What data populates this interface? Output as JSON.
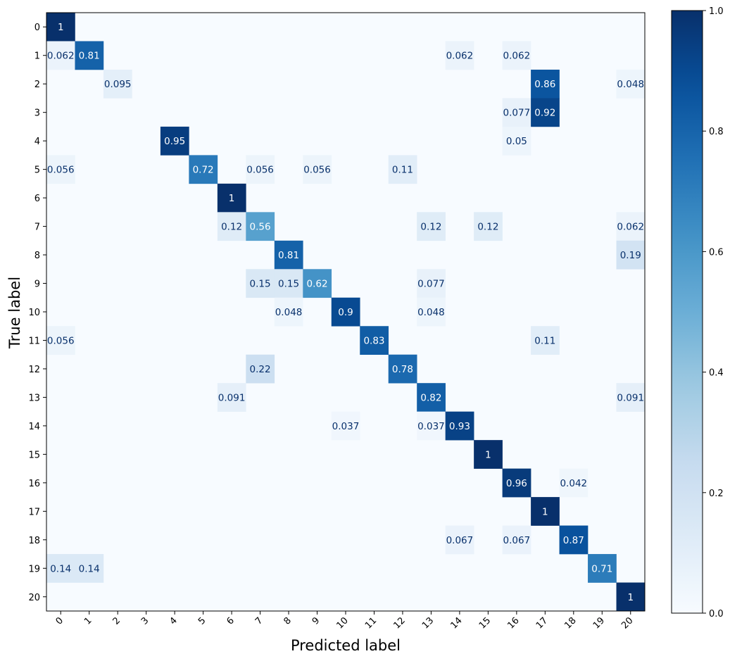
{
  "chart_data": {
    "type": "heatmap",
    "title": "",
    "xlabel": "Predicted label",
    "ylabel": "True label",
    "x_categories": [
      "0",
      "1",
      "2",
      "3",
      "4",
      "5",
      "6",
      "7",
      "8",
      "9",
      "10",
      "11",
      "12",
      "13",
      "14",
      "15",
      "16",
      "17",
      "18",
      "19",
      "20"
    ],
    "y_categories": [
      "0",
      "1",
      "2",
      "3",
      "4",
      "5",
      "6",
      "7",
      "8",
      "9",
      "10",
      "11",
      "12",
      "13",
      "14",
      "15",
      "16",
      "17",
      "18",
      "19",
      "20"
    ],
    "cells": [
      {
        "row": 0,
        "col": 0,
        "value": 1,
        "label": "1"
      },
      {
        "row": 1,
        "col": 0,
        "value": 0.062,
        "label": "0.062"
      },
      {
        "row": 1,
        "col": 1,
        "value": 0.81,
        "label": "0.81"
      },
      {
        "row": 1,
        "col": 14,
        "value": 0.062,
        "label": "0.062"
      },
      {
        "row": 1,
        "col": 16,
        "value": 0.062,
        "label": "0.062"
      },
      {
        "row": 2,
        "col": 2,
        "value": 0.095,
        "label": "0.095"
      },
      {
        "row": 2,
        "col": 17,
        "value": 0.86,
        "label": "0.86"
      },
      {
        "row": 2,
        "col": 20,
        "value": 0.048,
        "label": "0.048"
      },
      {
        "row": 3,
        "col": 16,
        "value": 0.077,
        "label": "0.077"
      },
      {
        "row": 3,
        "col": 17,
        "value": 0.92,
        "label": "0.92"
      },
      {
        "row": 4,
        "col": 4,
        "value": 0.95,
        "label": "0.95"
      },
      {
        "row": 4,
        "col": 16,
        "value": 0.05,
        "label": "0.05"
      },
      {
        "row": 5,
        "col": 0,
        "value": 0.056,
        "label": "0.056"
      },
      {
        "row": 5,
        "col": 5,
        "value": 0.72,
        "label": "0.72"
      },
      {
        "row": 5,
        "col": 7,
        "value": 0.056,
        "label": "0.056"
      },
      {
        "row": 5,
        "col": 9,
        "value": 0.056,
        "label": "0.056"
      },
      {
        "row": 5,
        "col": 12,
        "value": 0.11,
        "label": "0.11"
      },
      {
        "row": 6,
        "col": 6,
        "value": 1,
        "label": "1"
      },
      {
        "row": 7,
        "col": 6,
        "value": 0.12,
        "label": "0.12"
      },
      {
        "row": 7,
        "col": 7,
        "value": 0.56,
        "label": "0.56"
      },
      {
        "row": 7,
        "col": 13,
        "value": 0.12,
        "label": "0.12"
      },
      {
        "row": 7,
        "col": 15,
        "value": 0.12,
        "label": "0.12"
      },
      {
        "row": 7,
        "col": 20,
        "value": 0.062,
        "label": "0.062"
      },
      {
        "row": 8,
        "col": 8,
        "value": 0.81,
        "label": "0.81"
      },
      {
        "row": 8,
        "col": 20,
        "value": 0.19,
        "label": "0.19"
      },
      {
        "row": 9,
        "col": 7,
        "value": 0.15,
        "label": "0.15"
      },
      {
        "row": 9,
        "col": 8,
        "value": 0.15,
        "label": "0.15"
      },
      {
        "row": 9,
        "col": 9,
        "value": 0.62,
        "label": "0.62"
      },
      {
        "row": 9,
        "col": 13,
        "value": 0.077,
        "label": "0.077"
      },
      {
        "row": 10,
        "col": 8,
        "value": 0.048,
        "label": "0.048"
      },
      {
        "row": 10,
        "col": 10,
        "value": 0.9,
        "label": "0.9"
      },
      {
        "row": 10,
        "col": 13,
        "value": 0.048,
        "label": "0.048"
      },
      {
        "row": 11,
        "col": 0,
        "value": 0.056,
        "label": "0.056"
      },
      {
        "row": 11,
        "col": 11,
        "value": 0.83,
        "label": "0.83"
      },
      {
        "row": 11,
        "col": 17,
        "value": 0.11,
        "label": "0.11"
      },
      {
        "row": 12,
        "col": 7,
        "value": 0.22,
        "label": "0.22"
      },
      {
        "row": 12,
        "col": 12,
        "value": 0.78,
        "label": "0.78"
      },
      {
        "row": 13,
        "col": 6,
        "value": 0.091,
        "label": "0.091"
      },
      {
        "row": 13,
        "col": 13,
        "value": 0.82,
        "label": "0.82"
      },
      {
        "row": 13,
        "col": 20,
        "value": 0.091,
        "label": "0.091"
      },
      {
        "row": 14,
        "col": 10,
        "value": 0.037,
        "label": "0.037"
      },
      {
        "row": 14,
        "col": 13,
        "value": 0.037,
        "label": "0.037"
      },
      {
        "row": 14,
        "col": 14,
        "value": 0.93,
        "label": "0.93"
      },
      {
        "row": 15,
        "col": 15,
        "value": 1,
        "label": "1"
      },
      {
        "row": 16,
        "col": 16,
        "value": 0.96,
        "label": "0.96"
      },
      {
        "row": 16,
        "col": 18,
        "value": 0.042,
        "label": "0.042"
      },
      {
        "row": 17,
        "col": 17,
        "value": 1,
        "label": "1"
      },
      {
        "row": 18,
        "col": 14,
        "value": 0.067,
        "label": "0.067"
      },
      {
        "row": 18,
        "col": 16,
        "value": 0.067,
        "label": "0.067"
      },
      {
        "row": 18,
        "col": 18,
        "value": 0.87,
        "label": "0.87"
      },
      {
        "row": 19,
        "col": 0,
        "value": 0.14,
        "label": "0.14"
      },
      {
        "row": 19,
        "col": 1,
        "value": 0.14,
        "label": "0.14"
      },
      {
        "row": 19,
        "col": 19,
        "value": 0.71,
        "label": "0.71"
      },
      {
        "row": 20,
        "col": 20,
        "value": 1,
        "label": "1"
      }
    ],
    "colorbar": {
      "range": [
        0,
        1
      ],
      "ticks": [
        "0.0",
        "0.2",
        "0.4",
        "0.6",
        "0.8",
        "1.0"
      ],
      "tick_values": [
        0,
        0.2,
        0.4,
        0.6,
        0.8,
        1.0
      ],
      "colormap": "Blues",
      "low_color": "#f7fbff",
      "high_color": "#08306b"
    },
    "grid": false
  }
}
